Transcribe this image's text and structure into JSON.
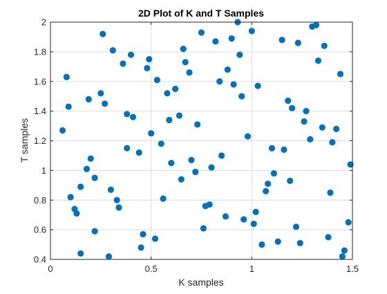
{
  "chart_data": {
    "type": "scatter",
    "title": "2D Plot of K and T Samples",
    "xlabel": "K samples",
    "ylabel": "T samples",
    "xlim": [
      0,
      1.5
    ],
    "ylim": [
      0.4,
      2.0
    ],
    "xticks": [
      "0",
      "0.5",
      "1",
      "1.5"
    ],
    "xtick_values": [
      0,
      0.5,
      1,
      1.5
    ],
    "yticks": [
      "0.4",
      "0.6",
      "0.8",
      "1",
      "1.2",
      "1.4",
      "1.6",
      "1.8",
      "2"
    ],
    "ytick_values": [
      0.4,
      0.6,
      0.8,
      1.0,
      1.2,
      1.4,
      1.6,
      1.8,
      2.0
    ],
    "grid": true,
    "marker_color": "#0072BD",
    "points": [
      [
        0.06,
        1.27
      ],
      [
        0.08,
        1.63
      ],
      [
        0.09,
        1.43
      ],
      [
        0.1,
        0.82
      ],
      [
        0.12,
        0.74
      ],
      [
        0.13,
        0.71
      ],
      [
        0.15,
        0.89
      ],
      [
        0.15,
        0.44
      ],
      [
        0.18,
        1.01
      ],
      [
        0.19,
        1.48
      ],
      [
        0.2,
        1.08
      ],
      [
        0.22,
        0.95
      ],
      [
        0.22,
        0.59
      ],
      [
        0.25,
        1.52
      ],
      [
        0.26,
        1.92
      ],
      [
        0.27,
        1.45
      ],
      [
        0.29,
        0.42
      ],
      [
        0.3,
        0.87
      ],
      [
        0.31,
        1.81
      ],
      [
        0.33,
        0.8
      ],
      [
        0.34,
        0.75
      ],
      [
        0.36,
        1.72
      ],
      [
        0.38,
        1.38
      ],
      [
        0.38,
        1.15
      ],
      [
        0.4,
        1.78
      ],
      [
        0.41,
        1.36
      ],
      [
        0.44,
        1.12
      ],
      [
        0.45,
        0.48
      ],
      [
        0.46,
        0.57
      ],
      [
        0.48,
        1.69
      ],
      [
        0.49,
        1.75
      ],
      [
        0.5,
        1.25
      ],
      [
        0.52,
        0.54
      ],
      [
        0.53,
        1.61
      ],
      [
        0.55,
        1.18
      ],
      [
        0.56,
        0.81
      ],
      [
        0.58,
        1.52
      ],
      [
        0.59,
        1.34
      ],
      [
        0.6,
        1.05
      ],
      [
        0.62,
        1.55
      ],
      [
        0.64,
        1.37
      ],
      [
        0.65,
        0.94
      ],
      [
        0.66,
        1.82
      ],
      [
        0.67,
        1.73
      ],
      [
        0.69,
        1.66
      ],
      [
        0.7,
        1.07
      ],
      [
        0.72,
        0.99
      ],
      [
        0.73,
        1.31
      ],
      [
        0.75,
        1.93
      ],
      [
        0.76,
        0.61
      ],
      [
        0.77,
        0.76
      ],
      [
        0.79,
        0.77
      ],
      [
        0.8,
        1.02
      ],
      [
        0.82,
        1.87
      ],
      [
        0.84,
        1.6
      ],
      [
        0.85,
        1.1
      ],
      [
        0.87,
        0.69
      ],
      [
        0.88,
        1.68
      ],
      [
        0.9,
        1.89
      ],
      [
        0.91,
        1.58
      ],
      [
        0.93,
        2.0
      ],
      [
        0.94,
        1.78
      ],
      [
        0.95,
        1.5
      ],
      [
        0.96,
        0.67
      ],
      [
        0.98,
        1.23
      ],
      [
        1.0,
        1.94
      ],
      [
        1.01,
        0.64
      ],
      [
        1.02,
        0.72
      ],
      [
        1.03,
        1.57
      ],
      [
        1.05,
        0.5
      ],
      [
        1.07,
        0.86
      ],
      [
        1.08,
        0.91
      ],
      [
        1.1,
        1.15
      ],
      [
        1.11,
        0.98
      ],
      [
        1.13,
        0.52
      ],
      [
        1.15,
        1.88
      ],
      [
        1.16,
        1.14
      ],
      [
        1.18,
        1.47
      ],
      [
        1.19,
        0.93
      ],
      [
        1.2,
        1.42
      ],
      [
        1.22,
        0.62
      ],
      [
        1.23,
        1.86
      ],
      [
        1.24,
        0.51
      ],
      [
        1.26,
        1.33
      ],
      [
        1.27,
        1.4
      ],
      [
        1.29,
        1.21
      ],
      [
        1.3,
        1.97
      ],
      [
        1.32,
        1.98
      ],
      [
        1.33,
        1.74
      ],
      [
        1.35,
        1.29
      ],
      [
        1.36,
        1.84
      ],
      [
        1.38,
        0.55
      ],
      [
        1.39,
        0.85
      ],
      [
        1.4,
        1.19
      ],
      [
        1.42,
        1.28
      ],
      [
        1.44,
        1.65
      ],
      [
        1.45,
        0.42
      ],
      [
        1.46,
        0.46
      ],
      [
        1.48,
        0.65
      ],
      [
        1.49,
        1.04
      ]
    ]
  }
}
